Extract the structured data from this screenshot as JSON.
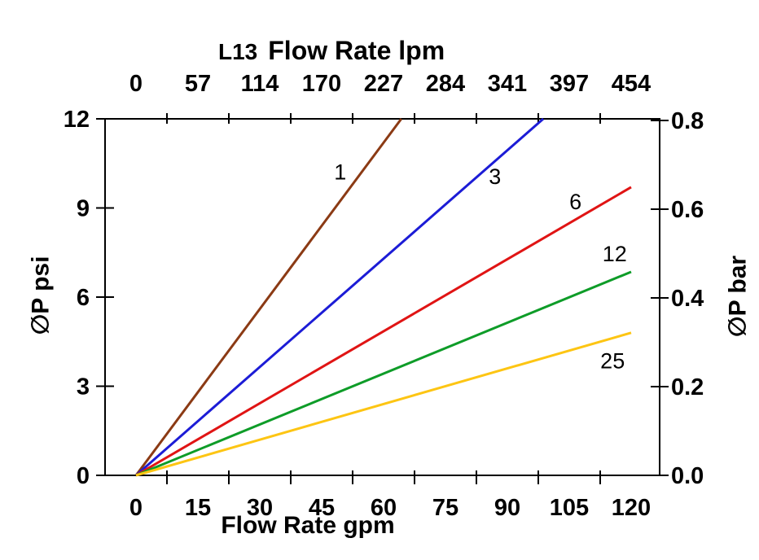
{
  "chart_data": {
    "type": "line",
    "title": {
      "model": "L13",
      "top_axis_title": "Flow Rate lpm"
    },
    "axes": {
      "top": {
        "unit": "lpm",
        "tick_labels": [
          "0",
          "57",
          "114",
          "170",
          "227",
          "284",
          "341",
          "397",
          "454"
        ]
      },
      "bottom": {
        "title": "Flow Rate gpm",
        "unit": "gpm",
        "tick_values": [
          0,
          15,
          30,
          45,
          60,
          75,
          90,
          105,
          120
        ],
        "range": [
          0,
          120
        ]
      },
      "left": {
        "title": "∅P psi",
        "unit": "psi",
        "tick_values": [
          0,
          3,
          6,
          9,
          12
        ],
        "range": [
          0,
          12
        ]
      },
      "right": {
        "title": "∅P bar",
        "unit": "bar",
        "tick_values": [
          0,
          0.2,
          0.4,
          0.6,
          0.8
        ],
        "tick_labels": [
          "0.0",
          "0.2",
          "0.4",
          "0.6",
          "0.8"
        ],
        "range": [
          0,
          0.8
        ]
      }
    },
    "grid": false,
    "legend_position": "inline-labels",
    "axis_color": "#000000",
    "background": "#FFFFFF",
    "series": [
      {
        "label": "1",
        "color": "#8B3A14",
        "x_gpm": [
          0,
          64.3
        ],
        "y_psi": [
          0,
          12
        ],
        "label_at": [
          49.5,
          10.2
        ]
      },
      {
        "label": "3",
        "color": "#1C1CD6",
        "x_gpm": [
          0,
          98.7
        ],
        "y_psi": [
          0,
          12
        ],
        "label_at": [
          87,
          10.05
        ]
      },
      {
        "label": "6",
        "color": "#E01414",
        "x_gpm": [
          0,
          120
        ],
        "y_psi": [
          0,
          9.7
        ],
        "label_at": [
          106.5,
          9.2
        ]
      },
      {
        "label": "12",
        "color": "#0E9C28",
        "x_gpm": [
          0,
          120
        ],
        "y_psi": [
          0,
          6.85
        ],
        "label_at": [
          116,
          7.45
        ]
      },
      {
        "label": "25",
        "color": "#FDC513",
        "x_gpm": [
          0,
          120
        ],
        "y_psi": [
          0,
          4.8
        ],
        "label_at": [
          115.5,
          3.85
        ]
      }
    ]
  }
}
